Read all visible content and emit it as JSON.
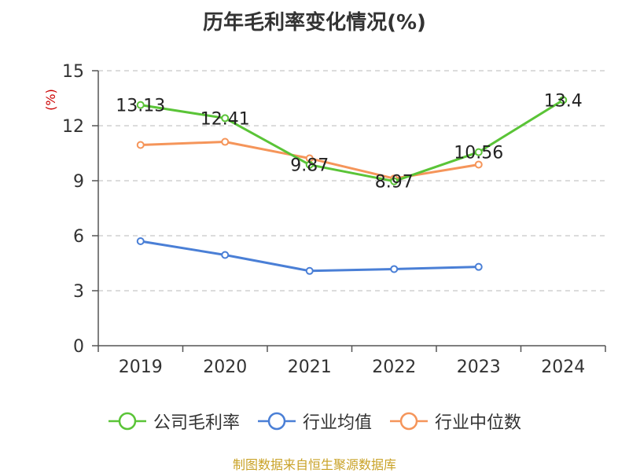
{
  "chart_data": {
    "type": "line",
    "title": "历年毛利率变化情况(%)",
    "ylabel": "(%)",
    "categories": [
      "2019",
      "2020",
      "2021",
      "2022",
      "2023",
      "2024"
    ],
    "ylim": [
      0,
      15
    ],
    "yticks": [
      "0",
      "3",
      "6",
      "9",
      "12",
      "15"
    ],
    "grid": true,
    "legend_position": "bottom",
    "series": [
      {
        "name": "公司毛利率",
        "color": "#5ac437",
        "values": [
          13.13,
          12.41,
          9.87,
          8.97,
          10.56,
          13.4
        ],
        "labels": [
          "13.13",
          "12.41",
          "9.87",
          "8.97",
          "10.56",
          "13.4"
        ]
      },
      {
        "name": "行业均值",
        "color": "#4a7fd6",
        "values": [
          5.7,
          4.95,
          4.08,
          4.18,
          4.3,
          null
        ]
      },
      {
        "name": "行业中位数",
        "color": "#f5955a",
        "values": [
          10.95,
          11.12,
          10.22,
          9.12,
          9.88,
          null
        ]
      }
    ]
  },
  "footer": {
    "source": "制图数据来自恒生聚源数据库"
  }
}
